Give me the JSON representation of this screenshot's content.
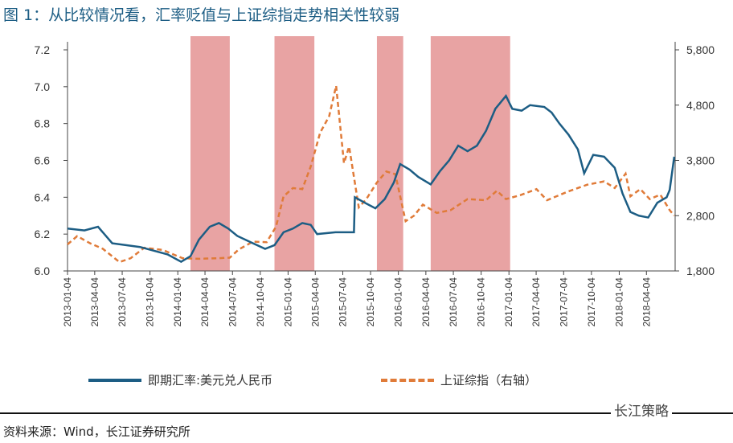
{
  "title": "图 1：从比较情况看，汇率贬值与上证综指走势相关性较弱",
  "source": "资料来源：Wind，长江证券研究所",
  "watermark": "长江策略",
  "colors": {
    "usdcny": "#1c5d84",
    "sse": "#e07b39",
    "shade": "#e8a3a3",
    "title": "#1c5d84"
  },
  "chart_data": {
    "type": "line",
    "title": "",
    "xlabel": "",
    "ylabel": "",
    "y_left": {
      "lim": [
        6.0,
        7.2
      ],
      "ticks": [
        "6.0",
        "6.2",
        "6.4",
        "6.6",
        "6.8",
        "7.0",
        "7.2"
      ]
    },
    "y_right": {
      "lim": [
        1800,
        5800
      ],
      "ticks": [
        "1,800",
        "2,800",
        "3,800",
        "4,800",
        "5,800"
      ]
    },
    "x_ticks": [
      "2013-01-04",
      "2013-04-04",
      "2013-07-04",
      "2013-10-04",
      "2014-01-04",
      "2014-04-04",
      "2014-07-04",
      "2014-10-04",
      "2015-01-04",
      "2015-04-04",
      "2015-07-04",
      "2015-10-04",
      "2016-01-04",
      "2016-04-04",
      "2016-07-04",
      "2016-10-04",
      "2017-01-04",
      "2017-04-04",
      "2017-07-04",
      "2017-10-04",
      "2018-01-04",
      "2018-04-04"
    ],
    "grid": false,
    "legend_position": "bottom",
    "shaded_periods": [
      [
        "2014-02-15",
        "2014-06-25"
      ],
      [
        "2014-11-20",
        "2015-04-01"
      ],
      [
        "2015-10-25",
        "2016-01-20"
      ],
      [
        "2016-04-20",
        "2017-01-08"
      ]
    ],
    "series": [
      {
        "name": "即期汇率:美元兑人民币",
        "axis": "left",
        "style": "solid",
        "points": [
          [
            "2013-01-04",
            6.23
          ],
          [
            "2013-03-01",
            6.22
          ],
          [
            "2013-04-15",
            6.24
          ],
          [
            "2013-06-01",
            6.15
          ],
          [
            "2013-09-01",
            6.13
          ],
          [
            "2013-12-01",
            6.09
          ],
          [
            "2014-01-15",
            6.05
          ],
          [
            "2014-02-15",
            6.08
          ],
          [
            "2014-03-15",
            6.17
          ],
          [
            "2014-04-20",
            6.24
          ],
          [
            "2014-05-20",
            6.26
          ],
          [
            "2014-06-20",
            6.23
          ],
          [
            "2014-07-20",
            6.19
          ],
          [
            "2014-09-10",
            6.15
          ],
          [
            "2014-10-20",
            6.12
          ],
          [
            "2014-11-20",
            6.14
          ],
          [
            "2014-12-20",
            6.21
          ],
          [
            "2015-01-20",
            6.23
          ],
          [
            "2015-02-20",
            6.26
          ],
          [
            "2015-03-20",
            6.25
          ],
          [
            "2015-04-10",
            6.2
          ],
          [
            "2015-06-10",
            6.21
          ],
          [
            "2015-08-10",
            6.21
          ],
          [
            "2015-08-13",
            6.4
          ],
          [
            "2015-09-15",
            6.37
          ],
          [
            "2015-10-20",
            6.34
          ],
          [
            "2015-11-20",
            6.39
          ],
          [
            "2015-12-20",
            6.48
          ],
          [
            "2016-01-10",
            6.58
          ],
          [
            "2016-02-10",
            6.55
          ],
          [
            "2016-03-10",
            6.51
          ],
          [
            "2016-04-20",
            6.47
          ],
          [
            "2016-05-20",
            6.54
          ],
          [
            "2016-06-20",
            6.6
          ],
          [
            "2016-07-20",
            6.68
          ],
          [
            "2016-08-20",
            6.65
          ],
          [
            "2016-09-20",
            6.68
          ],
          [
            "2016-10-20",
            6.76
          ],
          [
            "2016-11-20",
            6.88
          ],
          [
            "2016-12-25",
            6.95
          ],
          [
            "2017-01-15",
            6.88
          ],
          [
            "2017-02-15",
            6.87
          ],
          [
            "2017-03-15",
            6.9
          ],
          [
            "2017-05-01",
            6.89
          ],
          [
            "2017-05-25",
            6.86
          ],
          [
            "2017-06-20",
            6.8
          ],
          [
            "2017-07-20",
            6.74
          ],
          [
            "2017-08-20",
            6.66
          ],
          [
            "2017-09-10",
            6.53
          ],
          [
            "2017-10-10",
            6.63
          ],
          [
            "2017-11-15",
            6.62
          ],
          [
            "2017-12-20",
            6.56
          ],
          [
            "2018-01-15",
            6.42
          ],
          [
            "2018-02-10",
            6.32
          ],
          [
            "2018-03-10",
            6.3
          ],
          [
            "2018-04-10",
            6.29
          ],
          [
            "2018-05-10",
            6.37
          ],
          [
            "2018-06-10",
            6.4
          ],
          [
            "2018-06-20",
            6.44
          ],
          [
            "2018-07-05",
            6.62
          ]
        ]
      },
      {
        "name": "上证综指（右轴）",
        "axis": "right",
        "style": "dashed",
        "points": [
          [
            "2013-01-04",
            2280
          ],
          [
            "2013-02-05",
            2430
          ],
          [
            "2013-03-20",
            2300
          ],
          [
            "2013-05-01",
            2200
          ],
          [
            "2013-06-25",
            1960
          ],
          [
            "2013-08-01",
            2030
          ],
          [
            "2013-09-15",
            2220
          ],
          [
            "2013-11-15",
            2180
          ],
          [
            "2013-12-20",
            2100
          ],
          [
            "2014-01-20",
            2030
          ],
          [
            "2014-03-15",
            2020
          ],
          [
            "2014-05-15",
            2030
          ],
          [
            "2014-06-25",
            2040
          ],
          [
            "2014-07-25",
            2190
          ],
          [
            "2014-09-10",
            2330
          ],
          [
            "2014-10-25",
            2320
          ],
          [
            "2014-11-25",
            2600
          ],
          [
            "2014-12-20",
            3150
          ],
          [
            "2015-01-20",
            3300
          ],
          [
            "2015-02-20",
            3280
          ],
          [
            "2015-03-20",
            3690
          ],
          [
            "2015-04-20",
            4300
          ],
          [
            "2015-05-20",
            4600
          ],
          [
            "2015-06-12",
            5150
          ],
          [
            "2015-07-08",
            3750
          ],
          [
            "2015-07-25",
            4050
          ],
          [
            "2015-08-26",
            2950
          ],
          [
            "2015-09-20",
            3100
          ],
          [
            "2015-10-25",
            3400
          ],
          [
            "2015-11-25",
            3600
          ],
          [
            "2015-12-25",
            3550
          ],
          [
            "2016-01-28",
            2700
          ],
          [
            "2016-02-25",
            2800
          ],
          [
            "2016-03-25",
            3000
          ],
          [
            "2016-05-10",
            2850
          ],
          [
            "2016-06-25",
            2900
          ],
          [
            "2016-08-20",
            3100
          ],
          [
            "2016-10-20",
            3080
          ],
          [
            "2016-11-25",
            3250
          ],
          [
            "2016-12-25",
            3100
          ],
          [
            "2017-02-10",
            3170
          ],
          [
            "2017-04-05",
            3280
          ],
          [
            "2017-05-10",
            3080
          ],
          [
            "2017-07-20",
            3240
          ],
          [
            "2017-09-20",
            3360
          ],
          [
            "2017-11-15",
            3420
          ],
          [
            "2017-12-20",
            3300
          ],
          [
            "2018-01-25",
            3560
          ],
          [
            "2018-02-10",
            3150
          ],
          [
            "2018-03-15",
            3280
          ],
          [
            "2018-04-15",
            3100
          ],
          [
            "2018-05-20",
            3180
          ],
          [
            "2018-06-20",
            2900
          ],
          [
            "2018-07-05",
            2800
          ]
        ]
      }
    ]
  }
}
